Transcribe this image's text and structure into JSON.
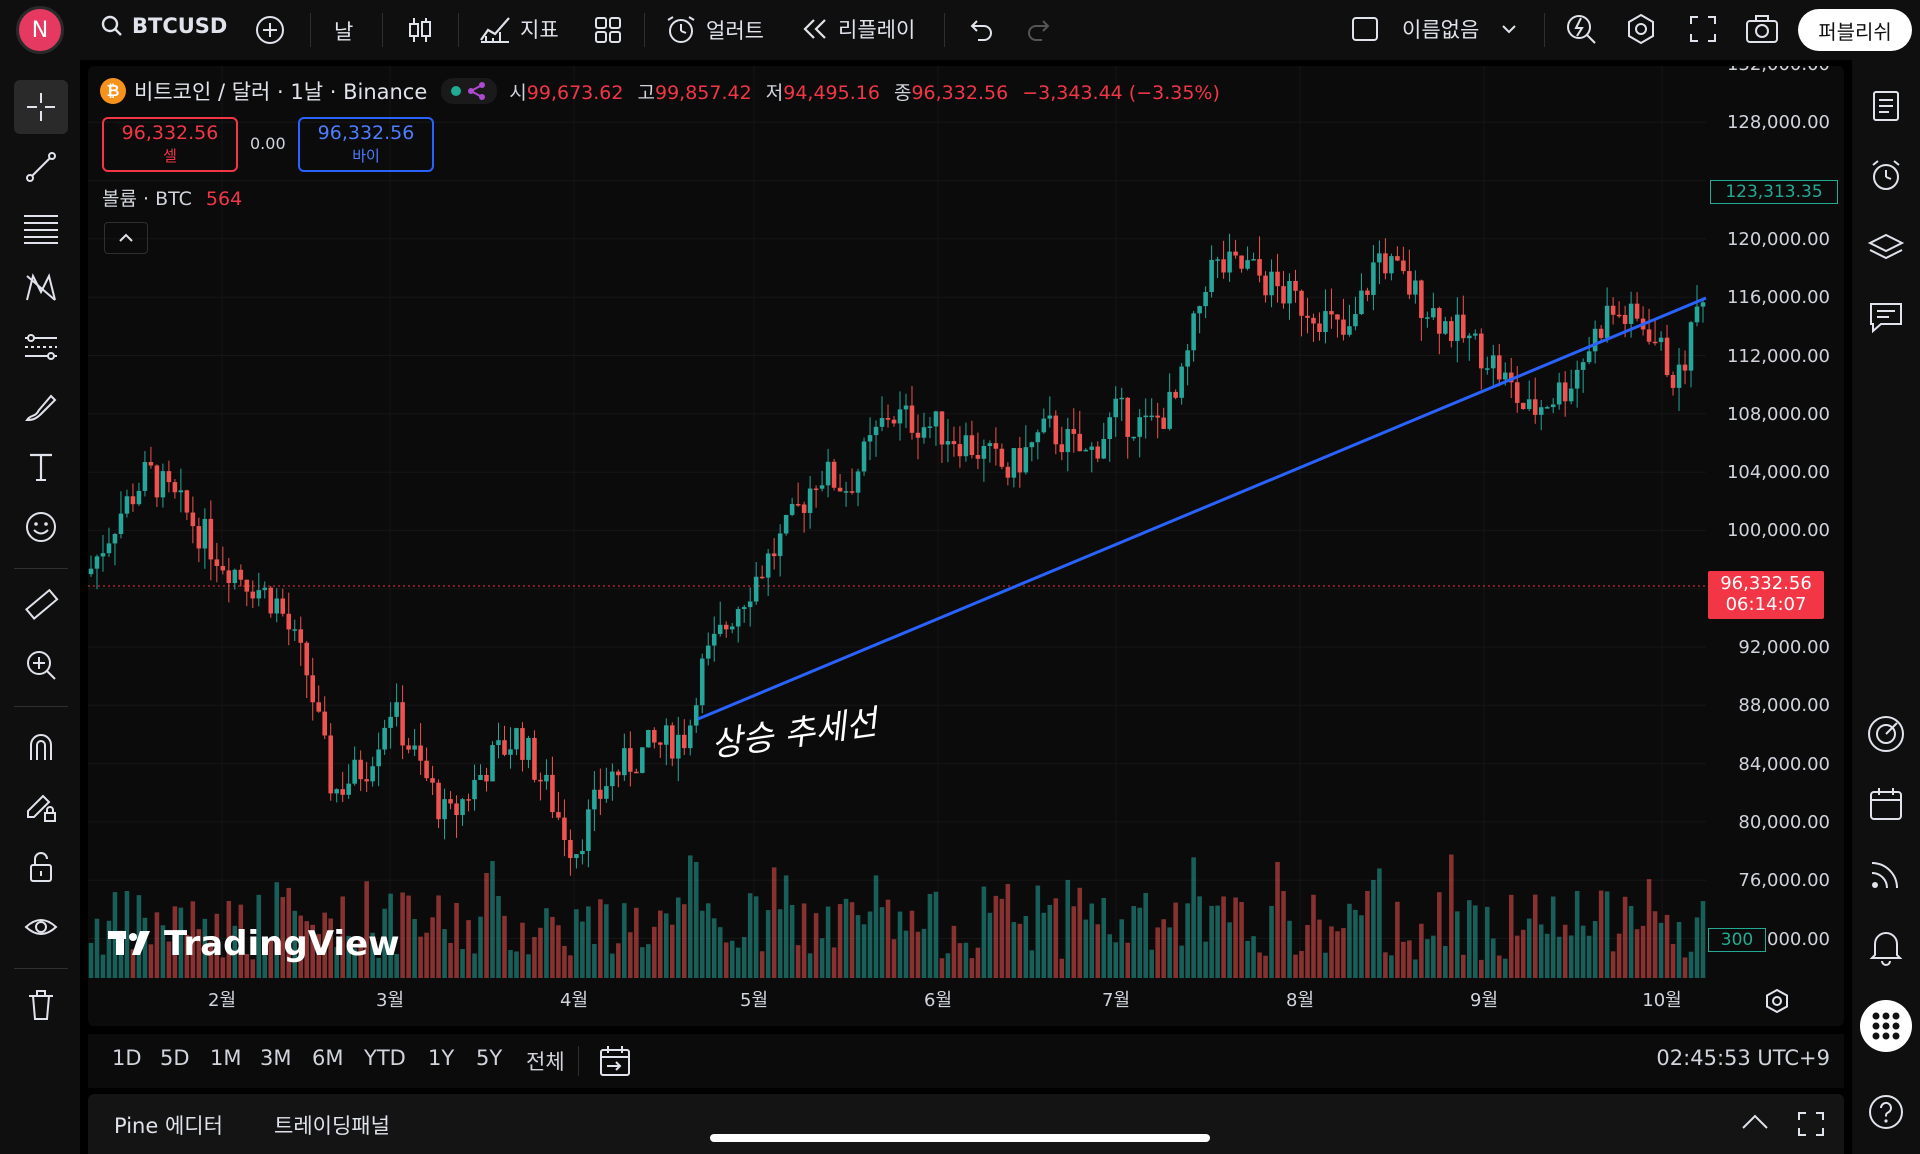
{
  "topbar": {
    "avatar_letter": "N",
    "symbol": "BTCUSD",
    "interval": "날",
    "indicators_label": "지표",
    "alert_label": "얼러트",
    "replay_label": "리플레이",
    "layout_name": "이름없음",
    "publish_label": "퍼블리쉬"
  },
  "legend": {
    "title": "비트코인 / 달러 · 1날 · Binance",
    "o_key": "시",
    "o_val": "99,673.62",
    "h_key": "고",
    "h_val": "99,857.42",
    "l_key": "저",
    "l_val": "94,495.16",
    "c_key": "종",
    "c_val": "96,332.56",
    "change": "−3,343.44 (−3.35%)",
    "sell_price": "96,332.56",
    "sell_label": "셀",
    "spread": "0.00",
    "buy_price": "96,332.56",
    "buy_label": "바이",
    "volume_label": "볼륨 · BTC",
    "volume_value": "564"
  },
  "price_axis": {
    "labels": [
      "132,000.00",
      "128,000.00",
      "124,000.00",
      "120,000.00",
      "116,000.00",
      "112,000.00",
      "108,000.00",
      "104,000.00",
      "100,000.00",
      "96,000.00",
      "92,000.00",
      "88,000.00",
      "84,000.00",
      "80,000.00",
      "76,000.00",
      "72,000.00"
    ],
    "last_price": "96,332.56",
    "countdown": "06:14:07",
    "crosshair_price": "123,313.35",
    "volume_tag": "300"
  },
  "time_axis": {
    "labels": [
      "2월",
      "3월",
      "4월",
      "5월",
      "6월",
      "7월",
      "8월",
      "9월",
      "10월"
    ]
  },
  "annotation": {
    "text": "상승 추세선"
  },
  "watermark": "TradingView",
  "bottombar": {
    "ranges": [
      "1D",
      "5D",
      "1M",
      "3M",
      "6M",
      "YTD",
      "1Y",
      "5Y",
      "전체"
    ],
    "clock": "02:45:53 UTC+9"
  },
  "panel": {
    "tab1": "Pine 에디터",
    "tab2": "트레이딩패널"
  },
  "colors": {
    "up": "#26a69a",
    "down": "#ef5350",
    "trendline": "#2962ff",
    "last_price_bg": "#f23645"
  },
  "chart_data": {
    "type": "candlestick",
    "symbol": "BTCUSD",
    "interval": "1D",
    "exchange": "Binance",
    "x_months": [
      "2월",
      "3월",
      "4월",
      "5월",
      "6월",
      "7월",
      "8월",
      "9월",
      "10월"
    ],
    "y_range": [
      72000,
      132000
    ],
    "last_close": 96332.56,
    "monthly_approx_closes": [
      {
        "month": "2월",
        "close": 96000
      },
      {
        "month": "3월",
        "close": 84000
      },
      {
        "month": "4월",
        "close": 82000
      },
      {
        "month": "5월",
        "close": 104000
      },
      {
        "month": "6월",
        "close": 107000
      },
      {
        "month": "7월",
        "close": 118000
      },
      {
        "month": "8월",
        "close": 113000
      },
      {
        "month": "9월",
        "close": 112000
      },
      {
        "month": "10월",
        "close": 122000
      }
    ],
    "trendline": {
      "label": "상승 추세선",
      "from": {
        "x": "4월 말",
        "y": 87500
      },
      "to": {
        "x": "10월",
        "y": 116000
      }
    }
  }
}
